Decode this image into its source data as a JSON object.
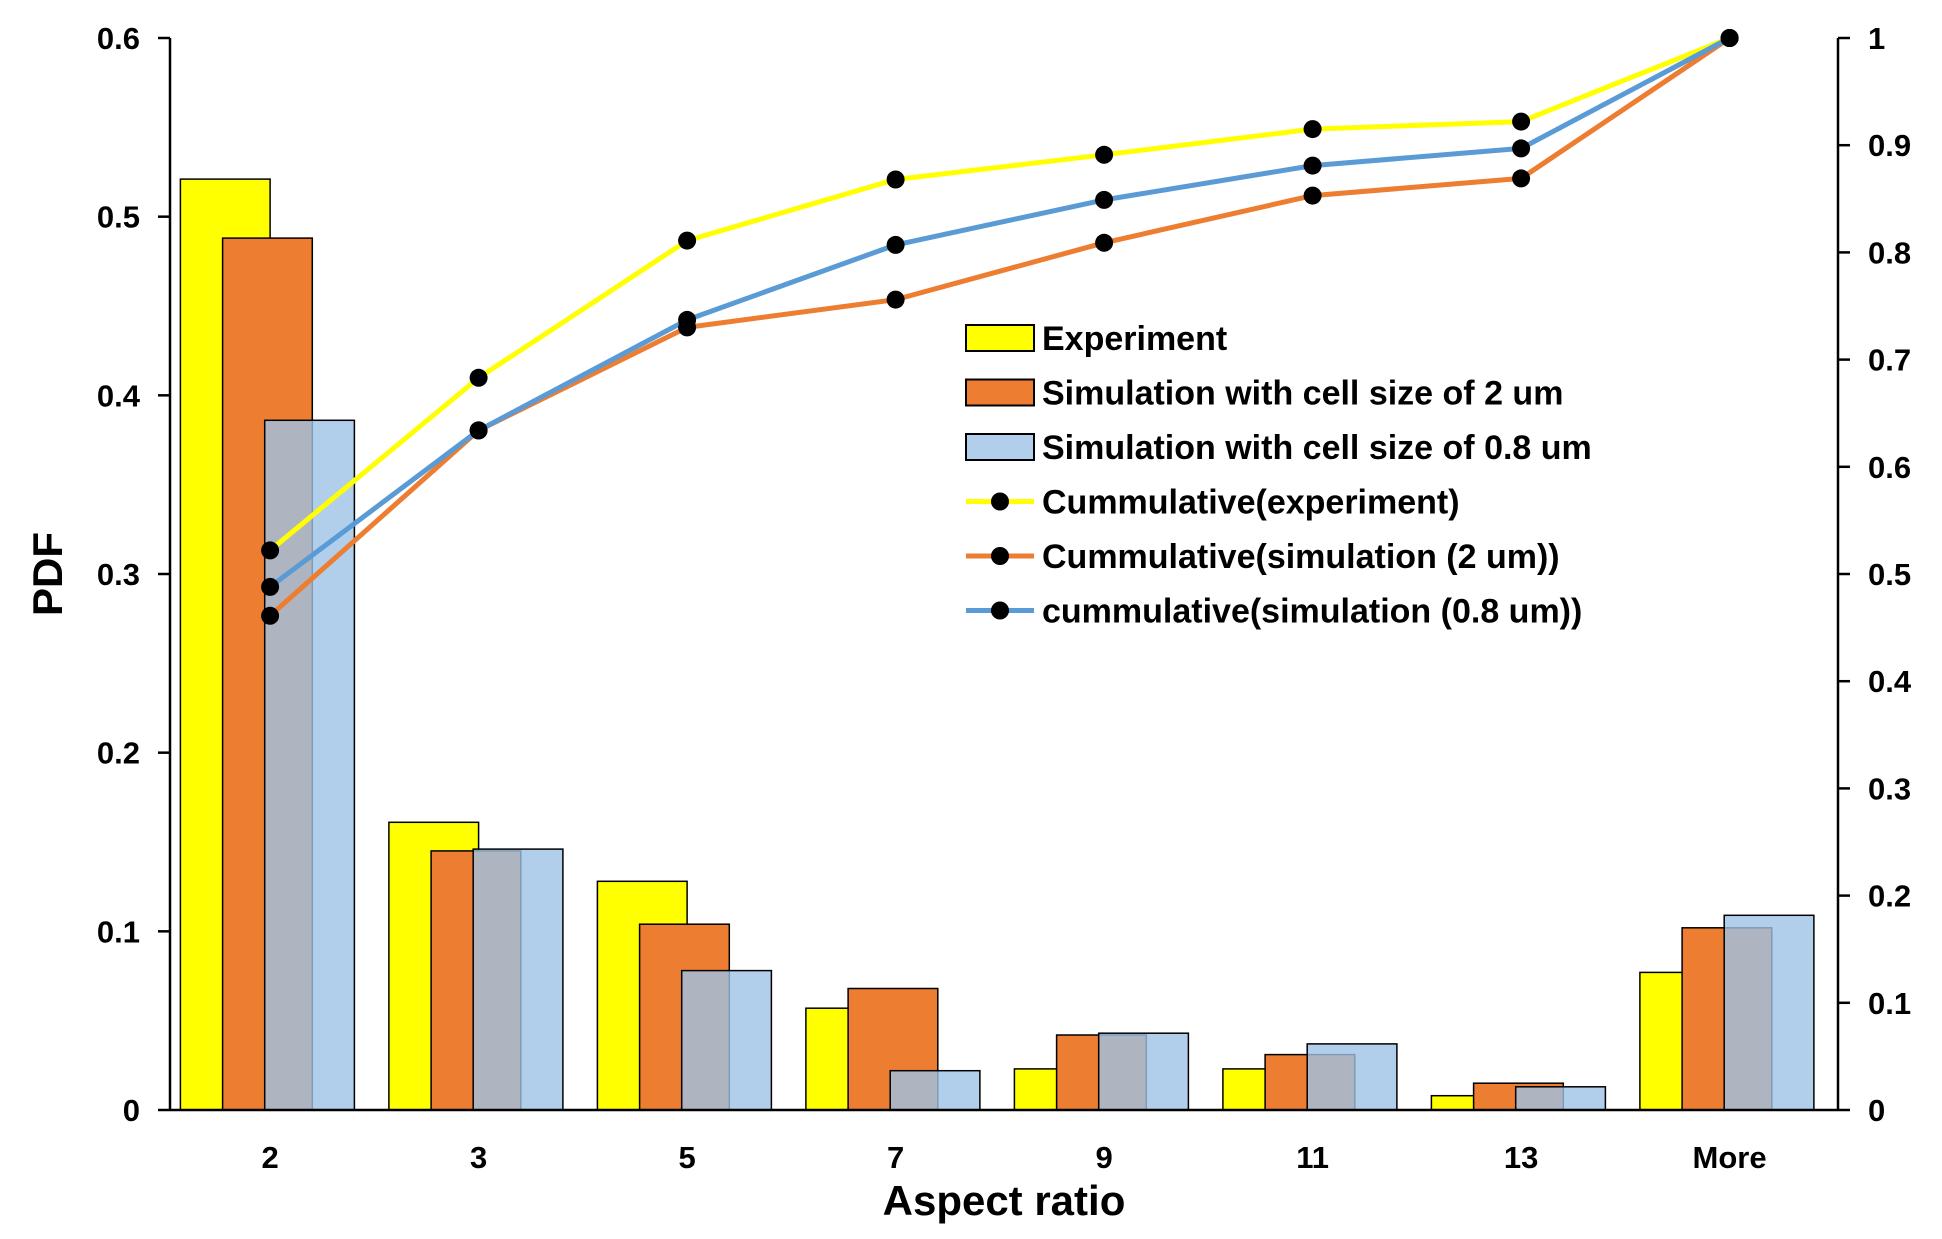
{
  "chart_data": {
    "type": "bar",
    "categories": [
      "2",
      "3",
      "5",
      "7",
      "9",
      "11",
      "13",
      "More"
    ],
    "xlabel": "Aspect ratio",
    "ylabel": "PDF",
    "ylim": [
      0,
      0.6
    ],
    "y2lim": [
      0,
      1
    ],
    "yticks": [
      "0",
      "0.1",
      "0.2",
      "0.3",
      "0.4",
      "0.5",
      "0.6"
    ],
    "y2ticks": [
      "0",
      "0.1",
      "0.2",
      "0.3",
      "0.4",
      "0.5",
      "0.6",
      "0.7",
      "0.8",
      "0.9",
      "1"
    ],
    "series": [
      {
        "name": "Experiment",
        "kind": "bar",
        "axis": "left",
        "color": "#FFFF00",
        "values": [
          0.521,
          0.161,
          0.128,
          0.057,
          0.023,
          0.023,
          0.008,
          0.077
        ]
      },
      {
        "name": "Simulation with cell size of 2 um",
        "kind": "bar",
        "axis": "left",
        "color": "#ED7D31",
        "values": [
          0.488,
          0.145,
          0.104,
          0.068,
          0.042,
          0.031,
          0.015,
          0.102
        ]
      },
      {
        "name": "Simulation with cell size of 0.8 um",
        "kind": "bar",
        "axis": "left",
        "color": "#9DC3E6",
        "opacity": 0.8,
        "values": [
          0.386,
          0.146,
          0.078,
          0.022,
          0.043,
          0.037,
          0.013,
          0.109
        ]
      },
      {
        "name": "Cummulative(experiment)",
        "kind": "line",
        "axis": "right",
        "color": "#FFFF00",
        "values": [
          0.522,
          0.683,
          0.811,
          0.868,
          0.891,
          0.915,
          0.922,
          1.0
        ]
      },
      {
        "name": "Cummulative(simulation (2 um))",
        "kind": "line",
        "axis": "right",
        "color": "#ED7D31",
        "values": [
          0.461,
          0.634,
          0.73,
          0.756,
          0.809,
          0.853,
          0.869,
          1.0
        ]
      },
      {
        "name": "cummulative(simulation (0.8 um))",
        "kind": "line",
        "axis": "right",
        "color": "#5B9BD5",
        "values": [
          0.488,
          0.634,
          0.737,
          0.807,
          0.849,
          0.881,
          0.897,
          1.0
        ]
      }
    ],
    "legend": "center-right",
    "grid": false
  }
}
